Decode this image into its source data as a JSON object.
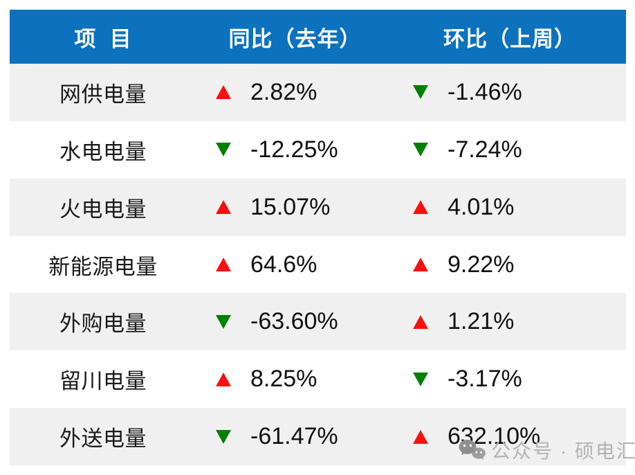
{
  "colors": {
    "header_bg": "#0c72bd",
    "row_alt_bg": "#f0f0f0",
    "row_bg": "#ffffff",
    "red": "#fb0f0f",
    "green": "#008000",
    "text": "#1a1a1a",
    "watermark": "#b3b3b3"
  },
  "table": {
    "header": {
      "item": "项  目",
      "yoy": "同比（去年）",
      "wow": "环比（上周）"
    },
    "rows": [
      {
        "item": "网供电量",
        "yoy": {
          "dir": "up",
          "color": "red",
          "value": "2.82%"
        },
        "wow": {
          "dir": "down",
          "color": "green",
          "value": "-1.46%"
        }
      },
      {
        "item": "水电电量",
        "yoy": {
          "dir": "down",
          "color": "green",
          "value": "-12.25%"
        },
        "wow": {
          "dir": "down",
          "color": "green",
          "value": "-7.24%"
        }
      },
      {
        "item": "火电电量",
        "yoy": {
          "dir": "up",
          "color": "red",
          "value": "15.07%"
        },
        "wow": {
          "dir": "up",
          "color": "red",
          "value": "4.01%"
        }
      },
      {
        "item": "新能源电量",
        "yoy": {
          "dir": "up",
          "color": "red",
          "value": "64.6%"
        },
        "wow": {
          "dir": "up",
          "color": "red",
          "value": "9.22%"
        }
      },
      {
        "item": "外购电量",
        "yoy": {
          "dir": "down",
          "color": "green",
          "value": "-63.60%"
        },
        "wow": {
          "dir": "up",
          "color": "red",
          "value": "1.21%"
        }
      },
      {
        "item": "留川电量",
        "yoy": {
          "dir": "up",
          "color": "red",
          "value": "8.25%"
        },
        "wow": {
          "dir": "down",
          "color": "green",
          "value": "-3.17%"
        }
      },
      {
        "item": "外送电量",
        "yoy": {
          "dir": "down",
          "color": "green",
          "value": "-61.47%"
        },
        "wow": {
          "dir": "up",
          "color": "red",
          "value": "632.10%"
        }
      }
    ]
  },
  "watermark": {
    "icon": "wechat-icon",
    "text": "公众号 · 硕电汇"
  },
  "chart_data": {
    "type": "table",
    "title": "",
    "columns": [
      "项 目",
      "同比（去年）",
      "环比（上周）"
    ],
    "rows": [
      [
        "网供电量",
        2.82,
        -1.46
      ],
      [
        "水电电量",
        -12.25,
        -7.24
      ],
      [
        "火电电量",
        15.07,
        4.01
      ],
      [
        "新能源电量",
        64.6,
        9.22
      ],
      [
        "外购电量",
        -63.6,
        1.21
      ],
      [
        "留川电量",
        8.25,
        -3.17
      ],
      [
        "外送电量",
        -61.47,
        632.1
      ]
    ],
    "units": "%",
    "legend": "red up-triangle = increase, green down-triangle = decrease"
  }
}
